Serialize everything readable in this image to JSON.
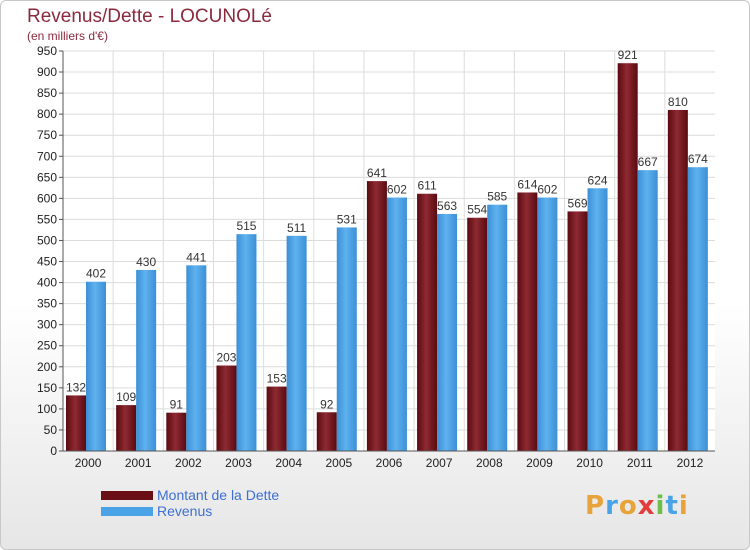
{
  "header": {
    "title": "Revenus/Dette - LOCUNOLé",
    "subtitle": "(en milliers d'€)"
  },
  "legend": {
    "items": [
      {
        "label": "Montant de la Dette",
        "color": "#6b0f16"
      },
      {
        "label": "Revenus",
        "color": "#4aa3e6"
      }
    ]
  },
  "logo": {
    "letters": [
      "P",
      "r",
      "o",
      "x",
      "i",
      "t",
      "i"
    ],
    "colors": [
      "#e8a33a",
      "#4aa3e6",
      "#e8a33a",
      "#e23c3c",
      "#6cc04a",
      "#4aa3e6",
      "#e8a33a"
    ]
  },
  "chart_data": {
    "type": "bar",
    "title": "Revenus/Dette - LOCUNOLé",
    "subtitle": "(en milliers d'€)",
    "categories": [
      "2000",
      "2001",
      "2002",
      "2003",
      "2004",
      "2005",
      "2006",
      "2007",
      "2008",
      "2009",
      "2010",
      "2011",
      "2012"
    ],
    "series": [
      {
        "name": "Montant de la Dette",
        "values": [
          132,
          109,
          91,
          203,
          153,
          92,
          641,
          611,
          554,
          614,
          569,
          921,
          810
        ],
        "color": "#6b0f16"
      },
      {
        "name": "Revenus",
        "values": [
          402,
          430,
          441,
          515,
          511,
          531,
          602,
          563,
          585,
          602,
          624,
          667,
          674
        ],
        "color": "#4aa3e6"
      }
    ],
    "ylim": [
      0,
      950
    ],
    "yticks": [
      0,
      50,
      100,
      150,
      200,
      250,
      300,
      350,
      400,
      450,
      500,
      550,
      600,
      650,
      700,
      750,
      800,
      850,
      900,
      950
    ],
    "grid": true,
    "legend_position": "bottom-left"
  }
}
